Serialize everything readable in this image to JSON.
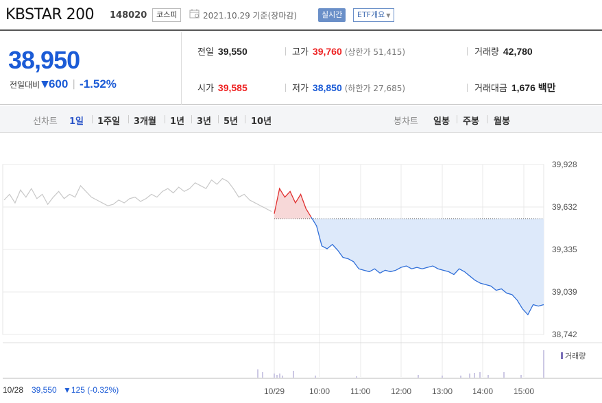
{
  "header": {
    "name": "KBSTAR 200",
    "code": "148020",
    "market": "코스피",
    "date": "2021.10.29 기준(장마감)",
    "realtime_label": "실시간",
    "etf_label": "ETF개요"
  },
  "summary": {
    "price": "38,950",
    "change_label": "전일대비",
    "change_value": "600",
    "change_rate": "-1.52%",
    "prev_close_label": "전일",
    "prev_close": "39,550",
    "high_label": "고가",
    "high": "39,760",
    "upper_limit": "(상한가 51,415)",
    "volume_label": "거래량",
    "volume": "42,780",
    "open_label": "시가",
    "open": "39,585",
    "low_label": "저가",
    "low": "38,850",
    "lower_limit": "(하한가 27,685)",
    "amount_label": "거래대금",
    "amount": "1,676 백만"
  },
  "controls": {
    "line_chart_label": "선차트",
    "periods": [
      "1일",
      "1주일",
      "3개월",
      "1년",
      "3년",
      "5년",
      "10년"
    ],
    "selected_period": "1일",
    "candle_label": "봉차트",
    "candle_periods": [
      "일봉",
      "주봉",
      "월봉"
    ]
  },
  "chart_data": {
    "type": "line",
    "y_ticks": [
      "39,928",
      "39,632",
      "39,335",
      "39,039",
      "38,742"
    ],
    "ylim": [
      38742,
      39928
    ],
    "prev_close": 39550,
    "x_ticks": [
      "10/29",
      "10:00",
      "11:00",
      "12:00",
      "13:00",
      "14:00",
      "15:00"
    ],
    "prev_day": {
      "label": "10/28",
      "close": "39,550",
      "change": "▼125 (-0.32%)",
      "values": [
        39680,
        39720,
        39660,
        39750,
        39700,
        39760,
        39690,
        39720,
        39650,
        39700,
        39740,
        39690,
        39720,
        39700,
        39780,
        39740,
        39700,
        39680,
        39660,
        39640,
        39650,
        39680,
        39660,
        39690,
        39700,
        39670,
        39690,
        39720,
        39700,
        39740,
        39760,
        39730,
        39770,
        39740,
        39760,
        39800,
        39780,
        39760,
        39820,
        39790,
        39830,
        39810,
        39760,
        39700,
        39720,
        39680,
        39660,
        39640,
        39620,
        39600
      ]
    },
    "today": {
      "values": [
        39585,
        39760,
        39700,
        39740,
        39660,
        39720,
        39620,
        39560,
        39500,
        39360,
        39340,
        39370,
        39330,
        39280,
        39270,
        39250,
        39200,
        39190,
        39180,
        39200,
        39170,
        39190,
        39180,
        39190,
        39210,
        39220,
        39200,
        39210,
        39200,
        39210,
        39220,
        39200,
        39190,
        39180,
        39160,
        39200,
        39180,
        39150,
        39120,
        39100,
        39090,
        39080,
        39050,
        39060,
        39030,
        39020,
        38980,
        38920,
        38880,
        38950,
        38940,
        38950
      ]
    },
    "volume_label": "거래량"
  }
}
